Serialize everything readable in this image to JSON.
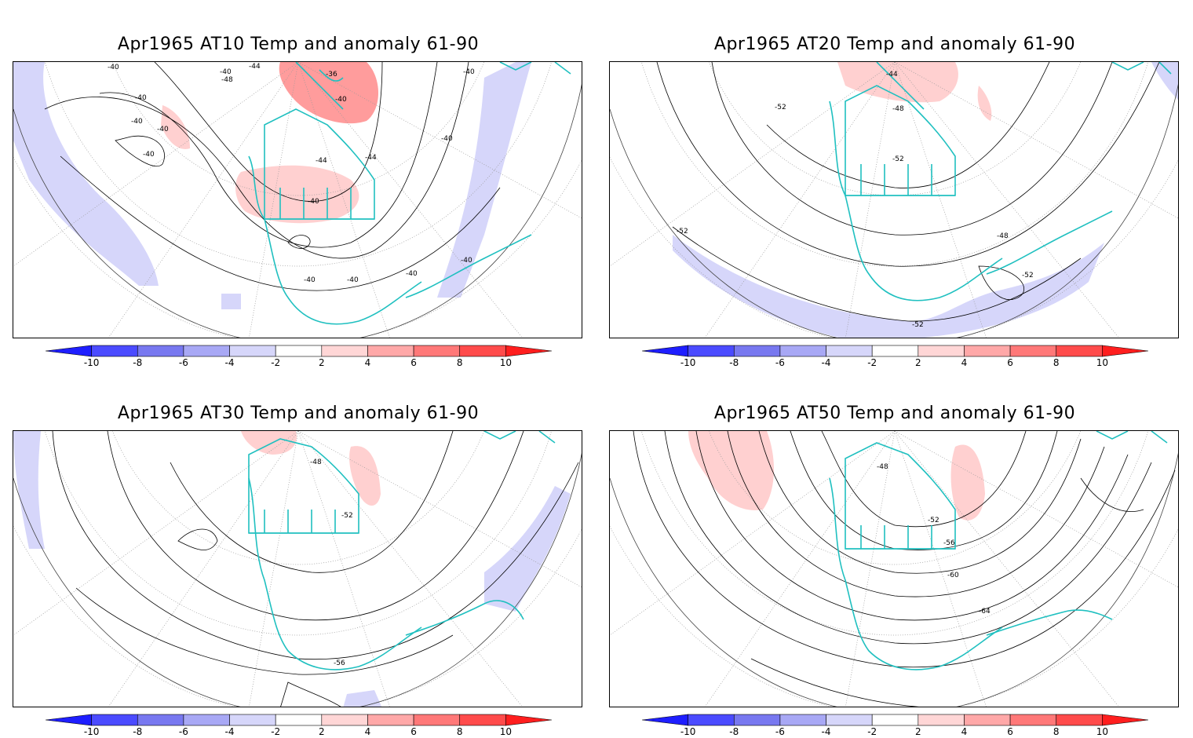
{
  "panels": [
    {
      "title": "Apr1965 AT10 Temp and anomaly 61-90",
      "contour_labels": [
        "-40",
        "-40",
        "-40",
        "-40",
        "-40",
        "-40",
        "-40",
        "-44",
        "-44",
        "-48",
        "-36",
        "-40",
        "-40",
        "-40",
        "-40",
        "-40",
        "-40",
        "-40",
        "-44"
      ]
    },
    {
      "title": "Apr1965 AT20 Temp and anomaly 61-90",
      "contour_labels": [
        "-44",
        "-48",
        "-52",
        "-52",
        "-52",
        "-48",
        "-52",
        "-52"
      ]
    },
    {
      "title": "Apr1965 AT30 Temp and anomaly 61-90",
      "contour_labels": [
        "-48",
        "-52",
        "-56"
      ]
    },
    {
      "title": "Apr1965 AT50 Temp and anomaly 61-90",
      "contour_labels": [
        "-48",
        "-52",
        "-56",
        "-60",
        "-64"
      ]
    }
  ],
  "colorbar": {
    "tick_labels": [
      "-10",
      "-8",
      "-6",
      "-4",
      "-2",
      "2",
      "4",
      "6",
      "8",
      "10"
    ],
    "colors": [
      "#1e1eff",
      "#4b4bff",
      "#7878f0",
      "#a8a8f5",
      "#d6d6fa",
      "#ffffff",
      "#ffd6d6",
      "#ffa8a8",
      "#ff7878",
      "#ff4b4b",
      "#ff1e1e"
    ]
  },
  "map_colors": {
    "coast": "#20c0c0",
    "warm": "#ffd0d0",
    "warm2": "#ff9c9c",
    "cold": "#d6d6fa",
    "contour": "#000000",
    "grid": "#888888"
  }
}
